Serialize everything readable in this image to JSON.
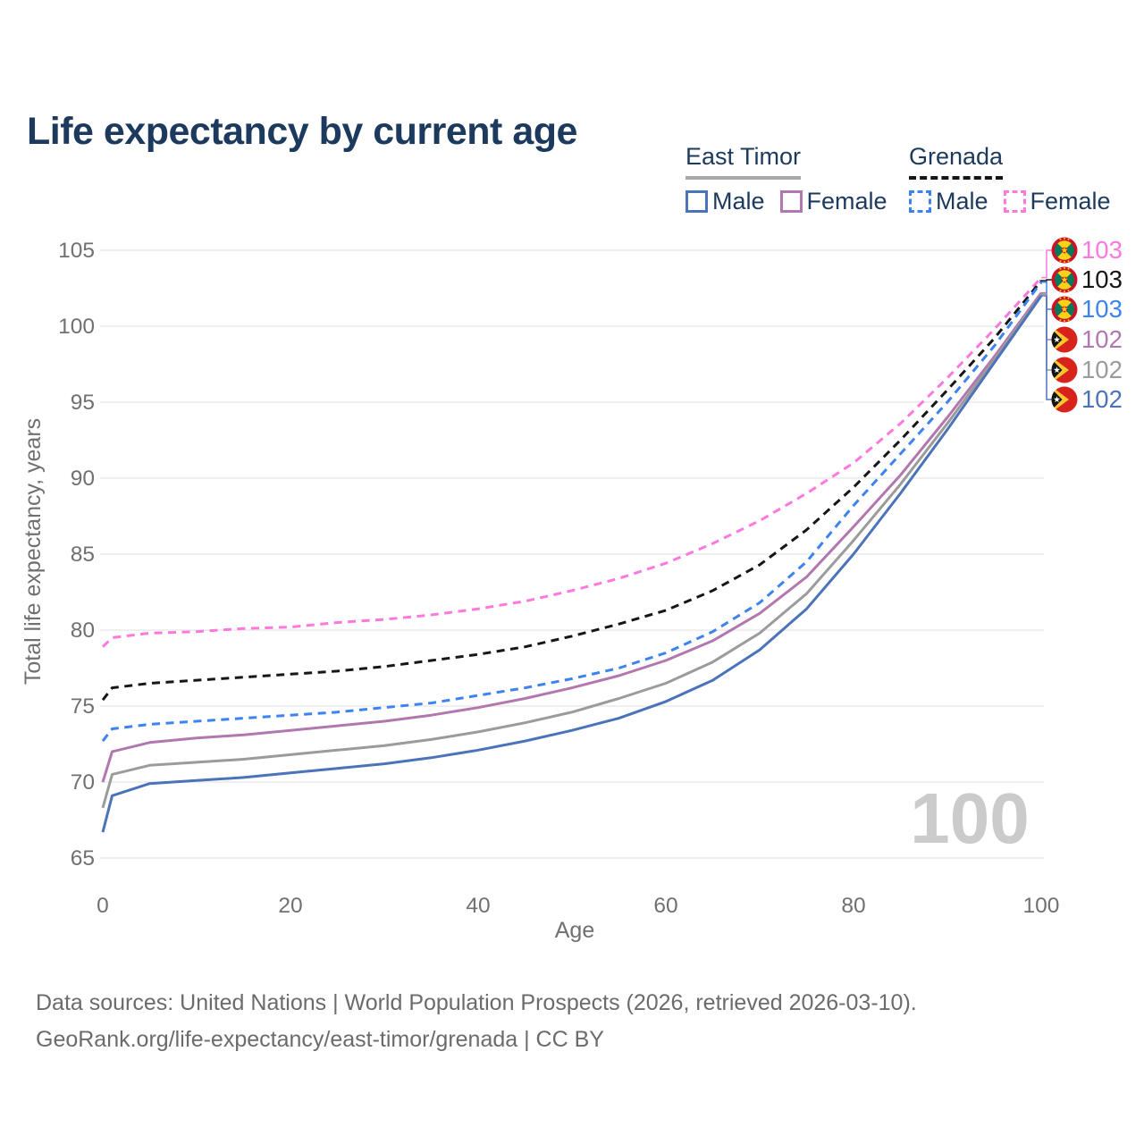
{
  "title": "Life expectancy by current age",
  "legend": {
    "groups": [
      {
        "label": "East Timor",
        "line_style": "solid",
        "underline_color": "#a8a8a8",
        "items": [
          {
            "label": "Male",
            "color": "#4b73b9",
            "dash": false
          },
          {
            "label": "Female",
            "color": "#b277af",
            "dash": false
          }
        ]
      },
      {
        "label": "Grenada",
        "line_style": "dashed",
        "underline_color": "#161616",
        "items": [
          {
            "label": "Male",
            "color": "#3c83f0",
            "dash": true
          },
          {
            "label": "Female",
            "color": "#ff78de",
            "dash": true
          }
        ]
      }
    ]
  },
  "watermark": "100",
  "footer": {
    "line1": "Data sources: United Nations | World Population Prospects (2026, retrieved 2026-03-10).",
    "line2": "GeoRank.org/life-expectancy/east-timor/grenada | CC BY"
  },
  "chart_data": {
    "type": "line",
    "title": "Life expectancy by current age",
    "xlabel": "Age",
    "ylabel": "Total life expectancy, years",
    "xlim": [
      0,
      100
    ],
    "ylim": [
      65,
      105
    ],
    "x_ticks": [
      0,
      20,
      40,
      60,
      80,
      100
    ],
    "y_ticks": [
      65,
      70,
      75,
      80,
      85,
      90,
      95,
      100,
      105
    ],
    "grid": "horizontal",
    "legend_position": "top-right",
    "ages": [
      0,
      1,
      5,
      10,
      15,
      20,
      25,
      30,
      35,
      40,
      45,
      50,
      55,
      60,
      65,
      70,
      75,
      80,
      85,
      90,
      95,
      100
    ],
    "series": [
      {
        "name": "Grenada Female",
        "country": "Grenada",
        "sex": "Female",
        "color": "#ff78de",
        "dash": true,
        "flag": "grenada",
        "end_label": "103",
        "values": [
          78.9,
          79.5,
          79.8,
          79.9,
          80.1,
          80.2,
          80.5,
          80.7,
          81.0,
          81.4,
          81.9,
          82.6,
          83.4,
          84.4,
          85.7,
          87.2,
          89.0,
          91.0,
          93.6,
          96.6,
          99.8,
          103.2
        ]
      },
      {
        "name": "Grenada Both sexes",
        "country": "Grenada",
        "sex": "Both",
        "color": "#161616",
        "dash": true,
        "flag": "grenada",
        "end_label": "103",
        "values": [
          75.4,
          76.2,
          76.5,
          76.7,
          76.9,
          77.1,
          77.3,
          77.6,
          78.0,
          78.4,
          78.9,
          79.6,
          80.4,
          81.3,
          82.6,
          84.3,
          86.6,
          89.4,
          92.5,
          95.8,
          99.2,
          103.0
        ]
      },
      {
        "name": "Grenada Male",
        "country": "Grenada",
        "sex": "Male",
        "color": "#3c83f0",
        "dash": true,
        "flag": "grenada",
        "end_label": "103",
        "values": [
          72.7,
          73.5,
          73.8,
          74.0,
          74.2,
          74.4,
          74.6,
          74.9,
          75.2,
          75.7,
          76.2,
          76.8,
          77.5,
          78.5,
          79.9,
          81.8,
          84.5,
          88.2,
          91.6,
          95.0,
          98.7,
          102.9
        ]
      },
      {
        "name": "East Timor Female",
        "country": "East Timor",
        "sex": "Female",
        "color": "#b277af",
        "dash": false,
        "flag": "east-timor",
        "end_label": "102",
        "values": [
          70.0,
          72.0,
          72.6,
          72.9,
          73.1,
          73.4,
          73.7,
          74.0,
          74.4,
          74.9,
          75.5,
          76.2,
          77.0,
          78.0,
          79.3,
          81.1,
          83.5,
          86.8,
          90.2,
          94.0,
          98.0,
          102.2
        ]
      },
      {
        "name": "East Timor Both sexes",
        "country": "East Timor",
        "sex": "Both",
        "color": "#9b9b9b",
        "dash": false,
        "flag": "east-timor",
        "end_label": "102",
        "values": [
          68.3,
          70.5,
          71.1,
          71.3,
          71.5,
          71.8,
          72.1,
          72.4,
          72.8,
          73.3,
          73.9,
          74.6,
          75.5,
          76.5,
          77.9,
          79.8,
          82.4,
          85.9,
          89.6,
          93.6,
          97.8,
          102.1
        ]
      },
      {
        "name": "East Timor Male",
        "country": "East Timor",
        "sex": "Male",
        "color": "#4b73b9",
        "dash": false,
        "flag": "east-timor",
        "end_label": "102",
        "values": [
          66.7,
          69.1,
          69.9,
          70.1,
          70.3,
          70.6,
          70.9,
          71.2,
          71.6,
          72.1,
          72.7,
          73.4,
          74.2,
          75.3,
          76.7,
          78.7,
          81.4,
          85.0,
          89.0,
          93.2,
          97.6,
          102.0
        ]
      }
    ]
  }
}
